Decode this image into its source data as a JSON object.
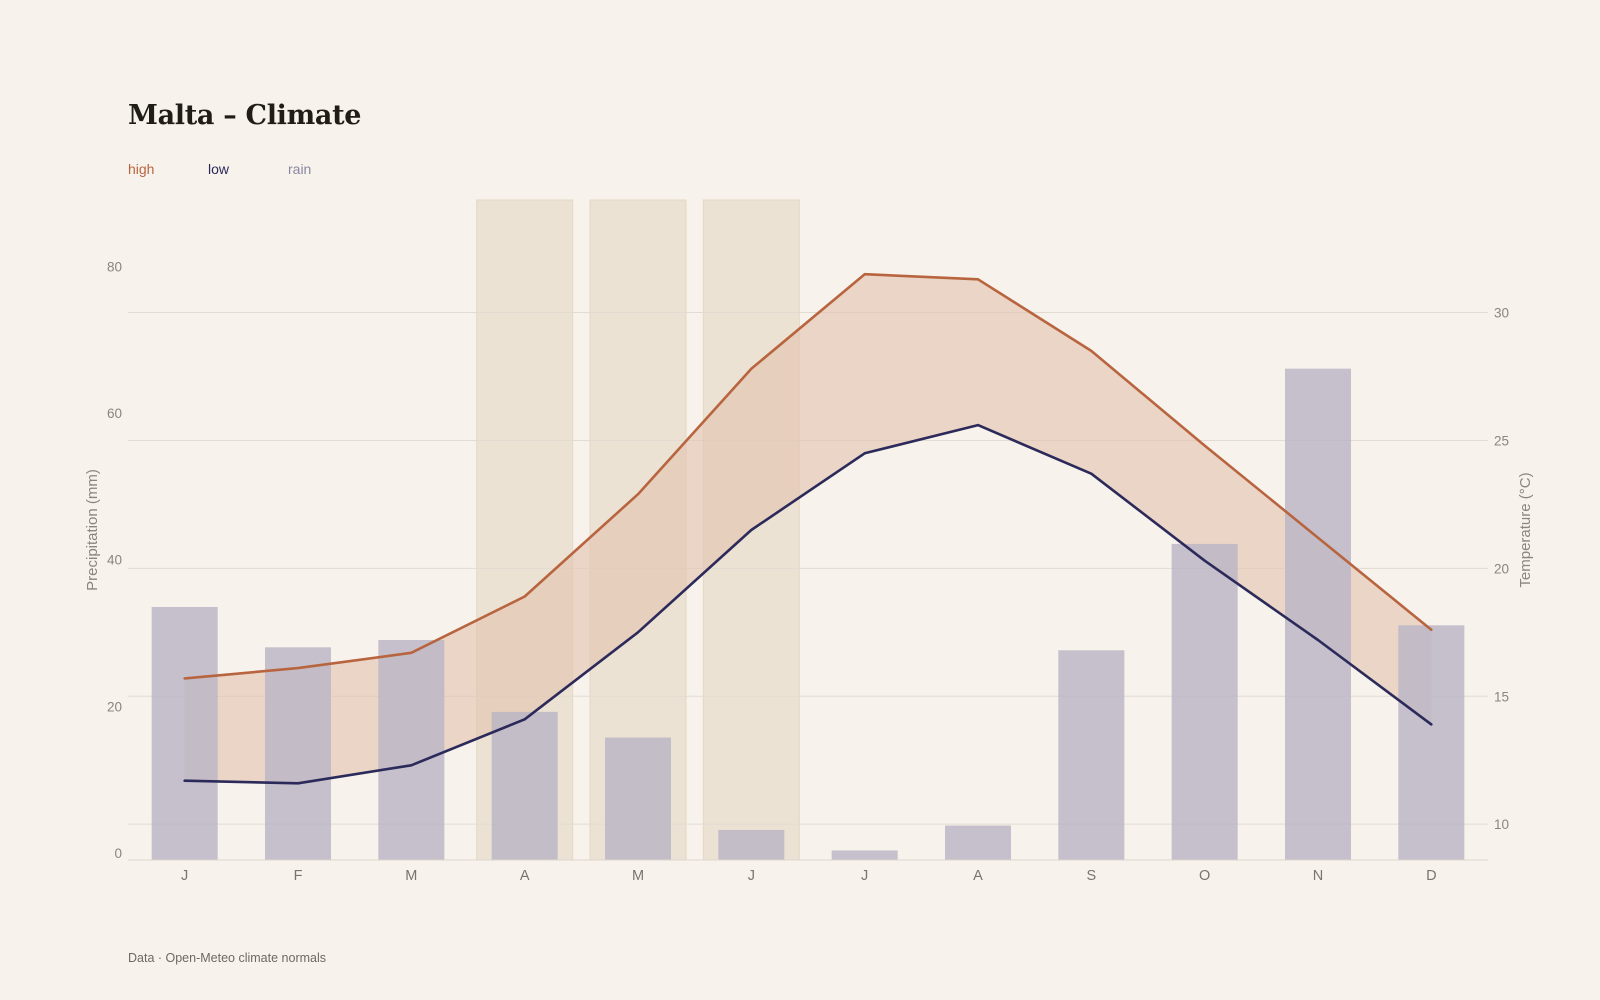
{
  "title": "Malta – Climate",
  "legend": [
    {
      "label": "high",
      "color": "#b8653f"
    },
    {
      "label": "low",
      "color": "#2b2a5a"
    },
    {
      "label": "rain",
      "color": "#8a87a3"
    }
  ],
  "source": "Data · Open-Meteo climate normals",
  "colors": {
    "background": "#f7f2ec",
    "high_line": "#b8653f",
    "low_line": "#2b2a5a",
    "band_fill": "#e4c3b0",
    "bar_fill": "#b9b5c4",
    "highlight_fill": "#ece2d4",
    "grid": "#e2dbd2",
    "tick_text": "#8c857d"
  },
  "chart_data": {
    "type": "bar",
    "categories": [
      "J",
      "F",
      "M",
      "A",
      "M",
      "J",
      "J",
      "A",
      "S",
      "O",
      "N",
      "D"
    ],
    "highlight_months": [
      3,
      4,
      5
    ],
    "y_left": {
      "label": "Precipitation (mm)",
      "ylim": [
        0,
        90
      ],
      "ticks": [
        0,
        20,
        40,
        60,
        80
      ]
    },
    "y_right": {
      "label": "Temperature (°C)",
      "ylim": [
        8.6,
        34.4
      ],
      "ticks": [
        10,
        15,
        20,
        25,
        30
      ]
    },
    "grid": true,
    "legend_position": "top-left",
    "series": [
      {
        "name": "rain",
        "type": "bar",
        "axis": "left",
        "values": [
          34.5,
          29.0,
          30.0,
          20.2,
          16.7,
          4.1,
          1.3,
          4.7,
          28.6,
          43.1,
          67.0,
          32.0
        ]
      },
      {
        "name": "high",
        "type": "line",
        "axis": "right",
        "values": [
          15.7,
          16.1,
          16.7,
          18.9,
          22.9,
          27.8,
          31.5,
          31.3,
          28.5,
          24.8,
          21.2,
          17.6
        ]
      },
      {
        "name": "low",
        "type": "line",
        "axis": "right",
        "values": [
          11.7,
          11.6,
          12.3,
          14.1,
          17.5,
          21.5,
          24.5,
          25.6,
          23.7,
          20.3,
          17.2,
          13.9
        ]
      }
    ]
  }
}
